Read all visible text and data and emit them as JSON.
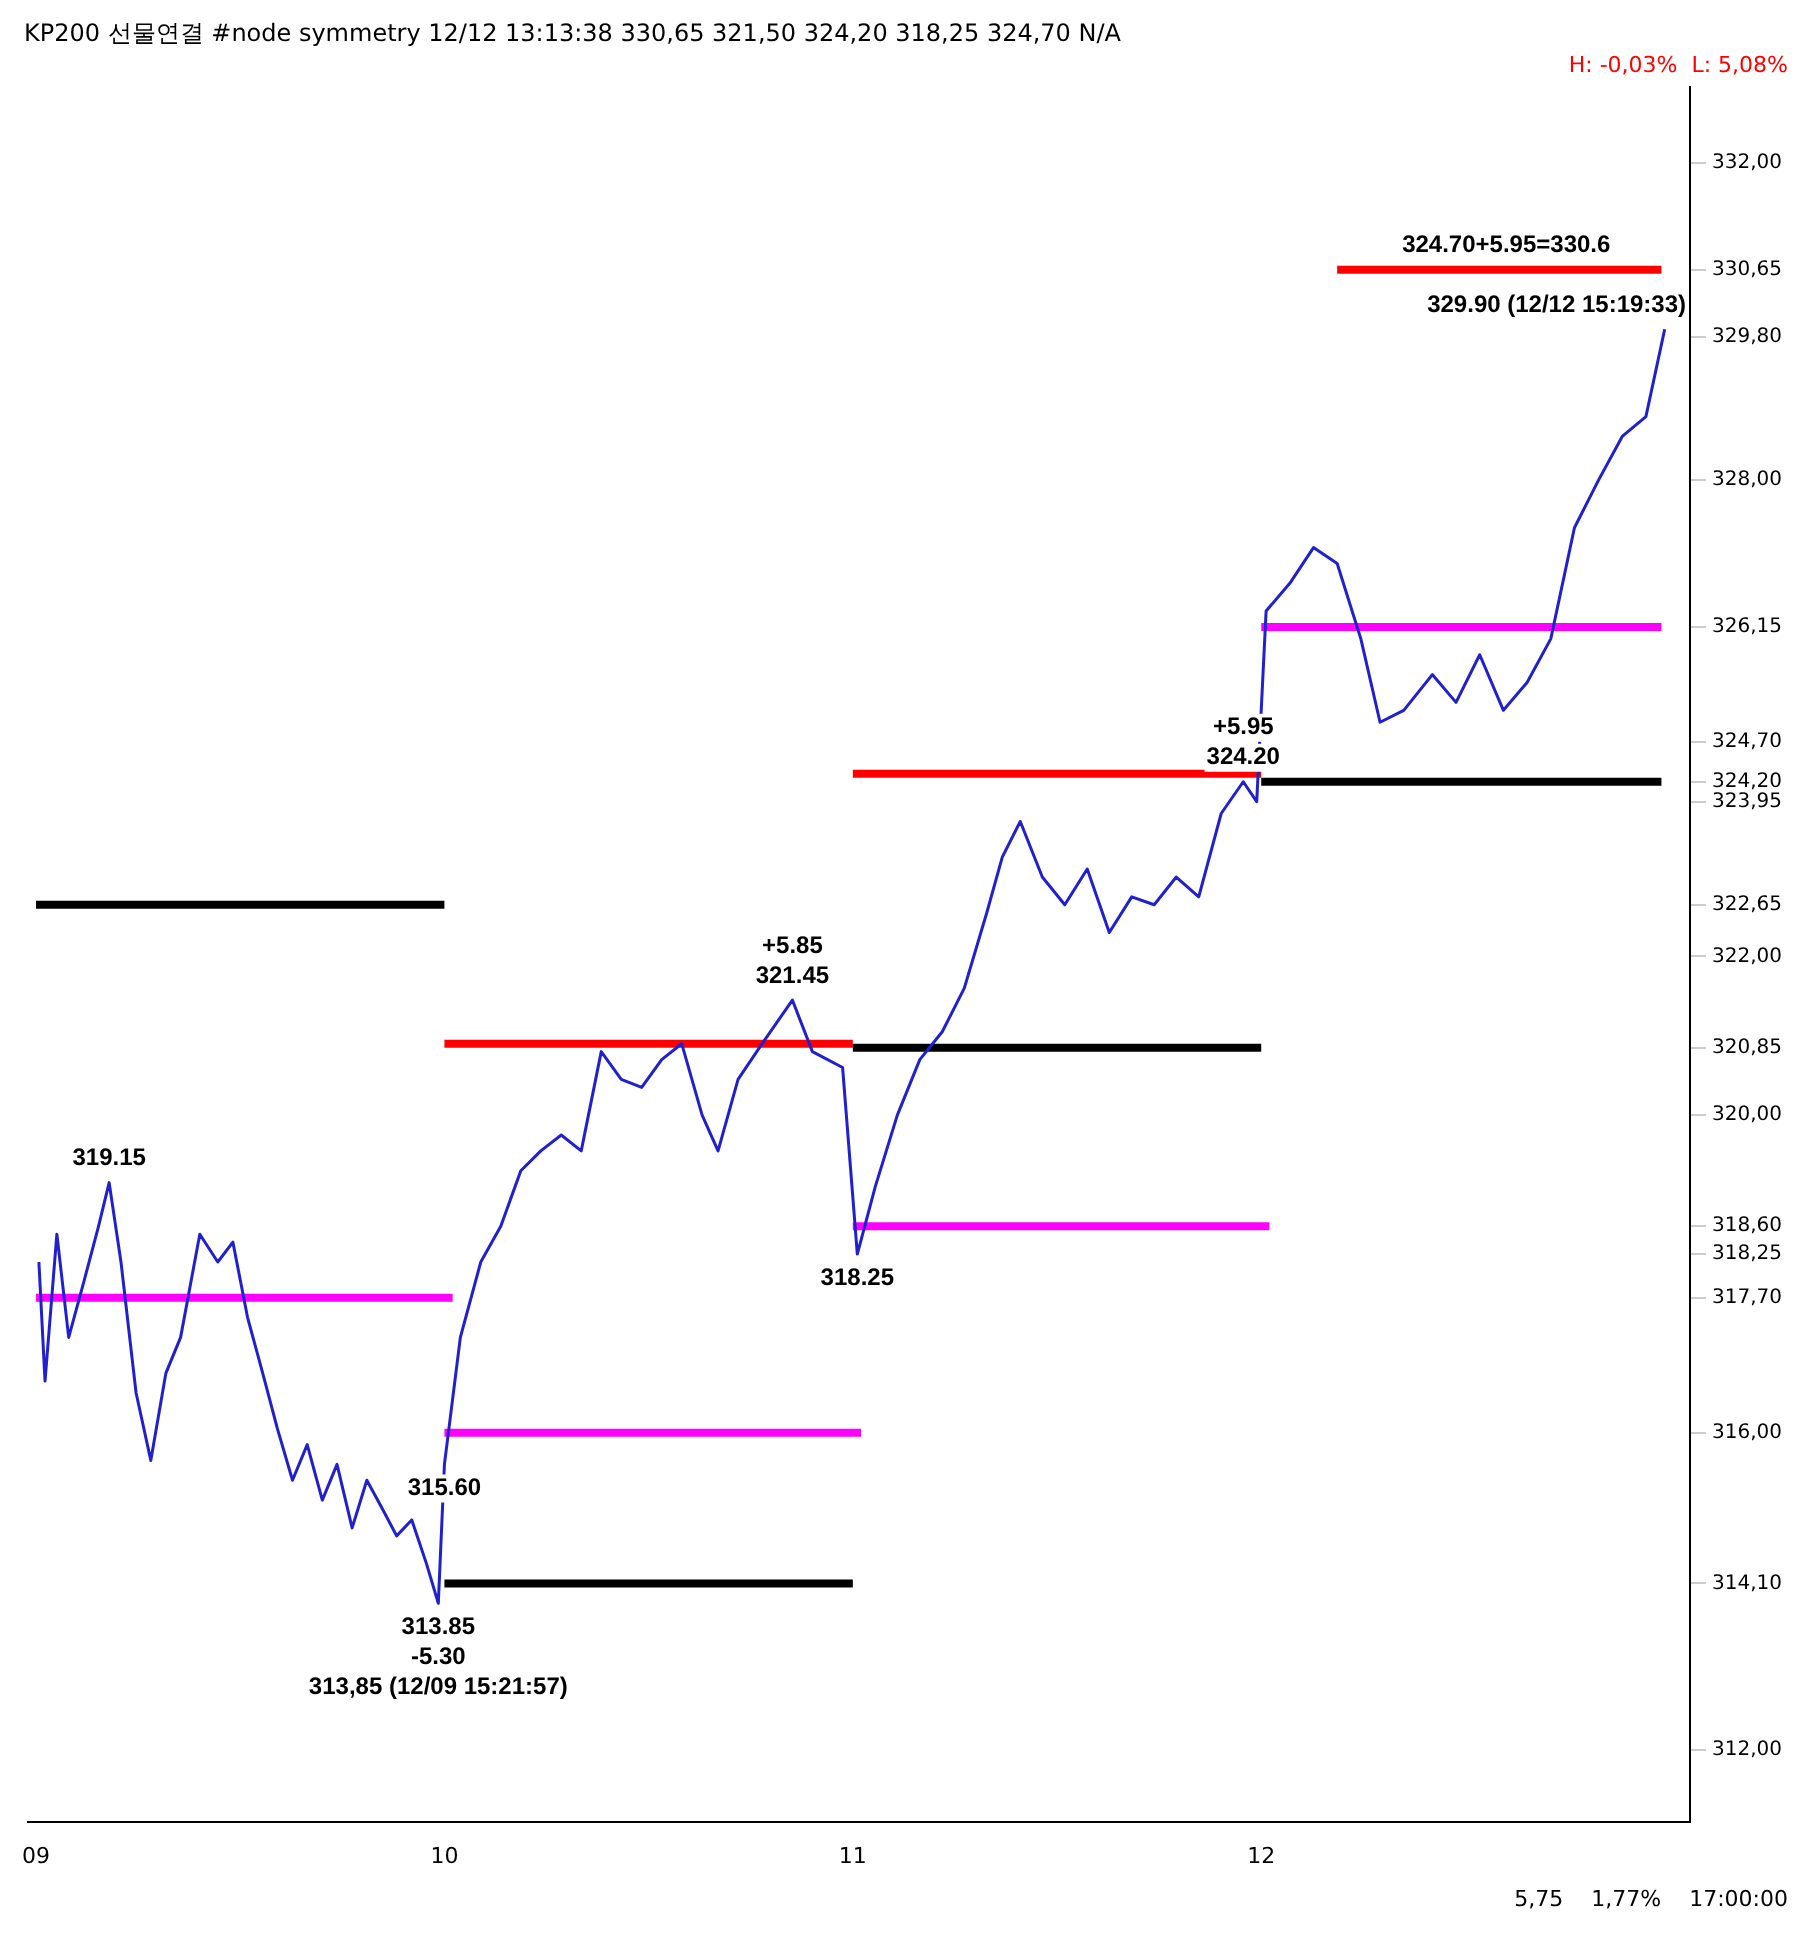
{
  "chart_data": {
    "type": "line",
    "title": "KP200 선물연결 #node symmetry 12/12 13:13:38 330,65 321,50 324,20 318,25 324,70 N/A",
    "subtitle": "H: -0,03%  L: 5,08%",
    "xlim": [
      8.98,
      13.05
    ],
    "xticks": [
      {
        "value": 9,
        "label": "09"
      },
      {
        "value": 10,
        "label": "10"
      },
      {
        "value": 11,
        "label": "11"
      },
      {
        "value": 12,
        "label": "12"
      }
    ],
    "ylim": [
      311.1,
      332.95
    ],
    "yticks": [
      {
        "value": 312,
        "label": "312,00"
      },
      {
        "value": 314.1,
        "label": "314,10"
      },
      {
        "value": 316,
        "label": "316,00"
      },
      {
        "value": 317.7,
        "label": "317,70"
      },
      {
        "value": 318.25,
        "label": "318,25"
      },
      {
        "value": 318.6,
        "label": "318,60"
      },
      {
        "value": 320,
        "label": "320,00"
      },
      {
        "value": 320.85,
        "label": "320,85"
      },
      {
        "value": 322,
        "label": "322,00"
      },
      {
        "value": 322.65,
        "label": "322,65"
      },
      {
        "value": 323.95,
        "label": "323,95"
      },
      {
        "value": 324.2,
        "label": "324,20"
      },
      {
        "value": 324.7,
        "label": "324,70"
      },
      {
        "value": 326.15,
        "label": "326,15"
      },
      {
        "value": 328,
        "label": "328,00"
      },
      {
        "value": 329.8,
        "label": "329,80"
      },
      {
        "value": 330.65,
        "label": "330,65"
      },
      {
        "value": 332,
        "label": "332,00"
      }
    ],
    "grid": false,
    "legend": false,
    "marker": "none",
    "line_style": "solid",
    "series": [
      {
        "color": "#2020d0",
        "x": [
          9.007,
          9.022,
          9.051,
          9.08,
          9.117,
          9.153,
          9.179,
          9.208,
          9.245,
          9.281,
          9.318,
          9.354,
          9.401,
          9.445,
          9.482,
          9.518,
          9.555,
          9.591,
          9.628,
          9.664,
          9.701,
          9.737,
          9.774,
          9.81,
          9.847,
          9.883,
          9.92,
          9.956,
          9.985,
          10.0,
          10.039,
          10.089,
          10.138,
          10.187,
          10.236,
          10.286,
          10.335,
          10.384,
          10.433,
          10.483,
          10.532,
          10.581,
          10.631,
          10.67,
          10.719,
          10.778,
          10.852,
          10.901,
          10.975,
          11.011,
          11.055,
          11.109,
          11.164,
          11.219,
          11.273,
          11.328,
          11.366,
          11.41,
          11.464,
          11.519,
          11.574,
          11.628,
          11.683,
          11.738,
          11.792,
          11.847,
          11.902,
          11.956,
          11.989,
          12.012,
          12.07,
          12.128,
          12.186,
          12.244,
          12.291,
          12.349,
          12.419,
          12.477,
          12.535,
          12.593,
          12.651,
          12.709,
          12.767,
          12.826,
          12.884,
          12.942,
          12.988
        ],
        "values": [
          318.15,
          316.65,
          318.5,
          317.2,
          317.9,
          318.6,
          319.15,
          318.15,
          316.5,
          315.65,
          316.75,
          317.2,
          318.5,
          318.15,
          318.4,
          317.45,
          316.75,
          316.05,
          315.4,
          315.85,
          315.15,
          315.6,
          314.8,
          315.4,
          315.05,
          314.7,
          314.9,
          314.35,
          313.85,
          315.6,
          317.2,
          318.15,
          318.6,
          319.3,
          319.55,
          319.75,
          319.55,
          320.8,
          320.45,
          320.35,
          320.7,
          320.9,
          320.0,
          319.55,
          320.45,
          320.9,
          321.45,
          320.8,
          320.6,
          318.25,
          319.1,
          320.0,
          320.7,
          321.05,
          321.6,
          322.55,
          323.25,
          323.7,
          323.0,
          322.65,
          323.1,
          322.3,
          322.75,
          322.65,
          323.0,
          322.75,
          323.8,
          324.2,
          323.95,
          326.35,
          326.7,
          327.15,
          326.95,
          326.0,
          324.95,
          325.1,
          325.55,
          325.2,
          325.8,
          325.1,
          325.45,
          326.0,
          327.4,
          328.0,
          328.55,
          328.8,
          329.9
        ]
      },
      {
        "color": "#ff00ff",
        "x": [
          9.0,
          10.02
        ],
        "values": [
          317.7,
          317.7
        ]
      },
      {
        "color": "#ff00ff",
        "x": [
          10.0,
          11.02
        ],
        "values": [
          316.0,
          316.0
        ]
      },
      {
        "color": "#ff00ff",
        "x": [
          11.0,
          12.02
        ],
        "values": [
          318.6,
          318.6
        ]
      },
      {
        "color": "#ff00ff",
        "x": [
          12.0,
          12.98
        ],
        "values": [
          326.15,
          326.15
        ]
      },
      {
        "color": "#000000",
        "x": [
          9.0,
          10.0
        ],
        "values": [
          322.65,
          322.65
        ]
      },
      {
        "color": "#000000",
        "x": [
          10.0,
          11.0
        ],
        "values": [
          314.1,
          314.1
        ]
      },
      {
        "color": "#000000",
        "x": [
          11.0,
          12.0
        ],
        "values": [
          320.85,
          320.85
        ]
      },
      {
        "color": "#000000",
        "x": [
          12.0,
          12.98
        ],
        "values": [
          324.2,
          324.2
        ]
      },
      {
        "color": "#ff0000",
        "x": [
          10.0,
          11.0
        ],
        "values": [
          320.9,
          320.9
        ]
      },
      {
        "color": "#ff0000",
        "x": [
          11.0,
          12.0
        ],
        "values": [
          324.3,
          324.3
        ]
      },
      {
        "color": "#ff0000",
        "x": [
          12.186,
          12.98
        ],
        "values": [
          330.65,
          330.65
        ]
      }
    ],
    "annotations": [
      {
        "text": "319.15",
        "x": 9.179,
        "y": 319.15
      },
      {
        "text": "313.85",
        "x": 9.985,
        "y": 313.85
      },
      {
        "text": "-5.30",
        "x": 9.985,
        "y": 313.85
      },
      {
        "text": "313,85 (12/09 15:21:57)",
        "x": 9.985,
        "y": 313.85
      },
      {
        "text": "315.60",
        "x": 10.0,
        "y": 315.6
      },
      {
        "text": "321.45",
        "x": 10.852,
        "y": 321.45
      },
      {
        "text": "+5.85",
        "x": 10.852,
        "y": 321.45
      },
      {
        "text": "318.25",
        "x": 11.011,
        "y": 318.25
      },
      {
        "text": "324.20",
        "x": 11.956,
        "y": 324.2
      },
      {
        "text": "+5.95",
        "x": 11.956,
        "y": 324.2
      },
      {
        "text": "324.70+5.95=330.6",
        "x": 12.6,
        "y": 330.65
      },
      {
        "text": "329.90 (12/12 15:19:33)",
        "x": 12.988,
        "y": 329.9
      },
      "5,75",
      "1,77%",
      "17:00:00"
    ]
  }
}
